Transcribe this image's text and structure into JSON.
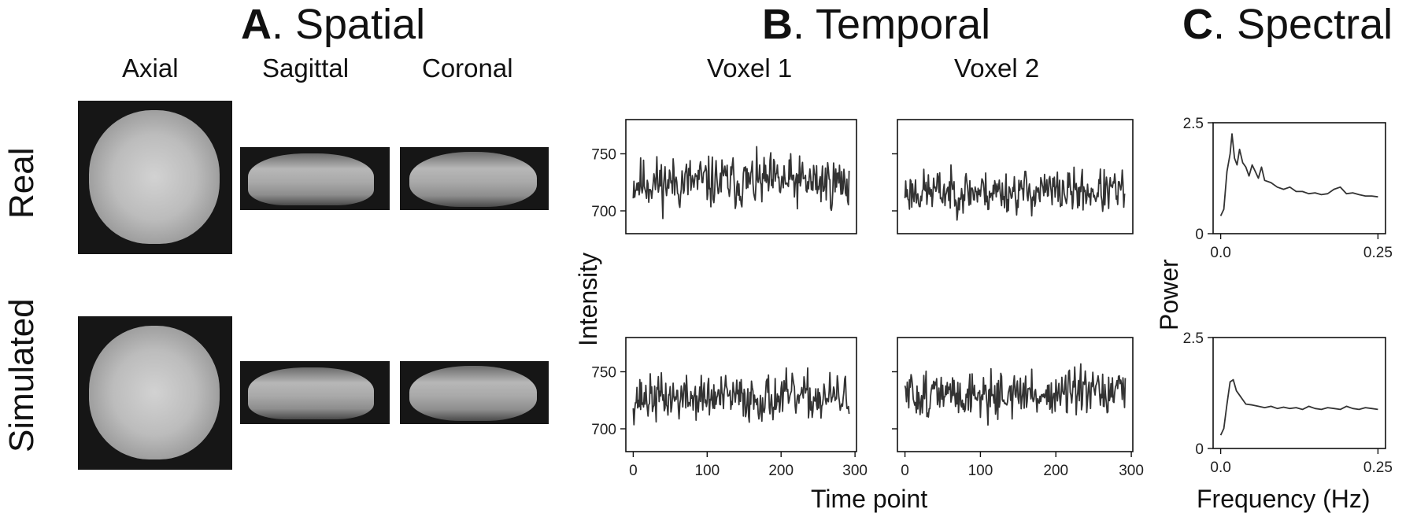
{
  "sections": {
    "spatial": {
      "letter": "A",
      "title": ". Spatial"
    },
    "temporal": {
      "letter": "B",
      "title": ". Temporal"
    },
    "spectral": {
      "letter": "C",
      "title": ". Spectral"
    }
  },
  "views": [
    "Axial",
    "Sagittal",
    "Coronal"
  ],
  "rows": [
    "Real",
    "Simulated"
  ],
  "voxels": [
    "Voxel 1",
    "Voxel 2"
  ],
  "temporal_ylabel": "Intensity",
  "temporal_xlabel": "Time point",
  "spectral_ylabel": "Power",
  "spectral_xlabel": "Frequency (Hz)",
  "colors": {
    "line": "#333333",
    "brain_bg": "#161616"
  },
  "chart_data": [
    {
      "type": "line",
      "name": "temporal-real-voxel1",
      "x_range": [
        0,
        292
      ],
      "ylim": [
        680,
        780
      ],
      "yticks": [
        700,
        750
      ],
      "xticks": [],
      "baseline": 725,
      "amplitude": 17,
      "seed": 11,
      "values": []
    },
    {
      "type": "line",
      "name": "temporal-real-voxel2",
      "x_range": [
        0,
        292
      ],
      "ylim": [
        680,
        780
      ],
      "yticks": [],
      "xticks": [],
      "baseline": 717,
      "amplitude": 14,
      "seed": 23,
      "values": []
    },
    {
      "type": "line",
      "name": "temporal-sim-voxel1",
      "x_range": [
        0,
        292
      ],
      "ylim": [
        680,
        780
      ],
      "yticks": [
        700,
        750
      ],
      "xticks": [
        0,
        100,
        200,
        300
      ],
      "baseline": 727,
      "amplitude": 15,
      "seed": 37,
      "values": []
    },
    {
      "type": "line",
      "name": "temporal-sim-voxel2",
      "x_range": [
        0,
        292
      ],
      "ylim": [
        680,
        780
      ],
      "yticks": [],
      "xticks": [
        0,
        100,
        200,
        300
      ],
      "baseline": 730,
      "amplitude": 15,
      "seed": 51,
      "values": []
    },
    {
      "type": "line",
      "name": "spectral-real",
      "xlim": [
        -0.012,
        0.262
      ],
      "ylim": [
        0,
        2.5
      ],
      "yticks": [
        0,
        2.5
      ],
      "xticks": [
        0.0,
        0.25
      ],
      "x": [
        0.0,
        0.005,
        0.01,
        0.015,
        0.018,
        0.022,
        0.026,
        0.03,
        0.035,
        0.04,
        0.045,
        0.05,
        0.055,
        0.06,
        0.065,
        0.07,
        0.08,
        0.09,
        0.1,
        0.11,
        0.12,
        0.13,
        0.14,
        0.15,
        0.16,
        0.17,
        0.18,
        0.19,
        0.2,
        0.21,
        0.22,
        0.23,
        0.24,
        0.25
      ],
      "values": [
        0.4,
        0.55,
        1.4,
        1.8,
        2.25,
        1.7,
        1.55,
        1.9,
        1.6,
        1.5,
        1.3,
        1.55,
        1.4,
        1.25,
        1.5,
        1.2,
        1.15,
        1.05,
        1.0,
        1.05,
        0.95,
        0.95,
        0.9,
        0.92,
        0.88,
        0.9,
        1.0,
        1.05,
        0.9,
        0.92,
        0.88,
        0.85,
        0.85,
        0.83
      ]
    },
    {
      "type": "line",
      "name": "spectral-simulated",
      "xlim": [
        -0.012,
        0.262
      ],
      "ylim": [
        0,
        2.5
      ],
      "yticks": [
        0,
        2.5
      ],
      "xticks": [
        0.0,
        0.25
      ],
      "x": [
        0.0,
        0.005,
        0.01,
        0.015,
        0.02,
        0.025,
        0.03,
        0.035,
        0.04,
        0.05,
        0.06,
        0.07,
        0.08,
        0.09,
        0.1,
        0.11,
        0.12,
        0.13,
        0.14,
        0.15,
        0.16,
        0.17,
        0.18,
        0.19,
        0.2,
        0.21,
        0.22,
        0.23,
        0.24,
        0.25
      ],
      "values": [
        0.3,
        0.45,
        1.0,
        1.5,
        1.55,
        1.3,
        1.2,
        1.1,
        1.0,
        0.98,
        0.95,
        0.92,
        0.95,
        0.9,
        0.93,
        0.9,
        0.92,
        0.88,
        0.95,
        0.9,
        0.88,
        0.92,
        0.9,
        0.88,
        0.95,
        0.9,
        0.88,
        0.92,
        0.9,
        0.88
      ]
    }
  ]
}
